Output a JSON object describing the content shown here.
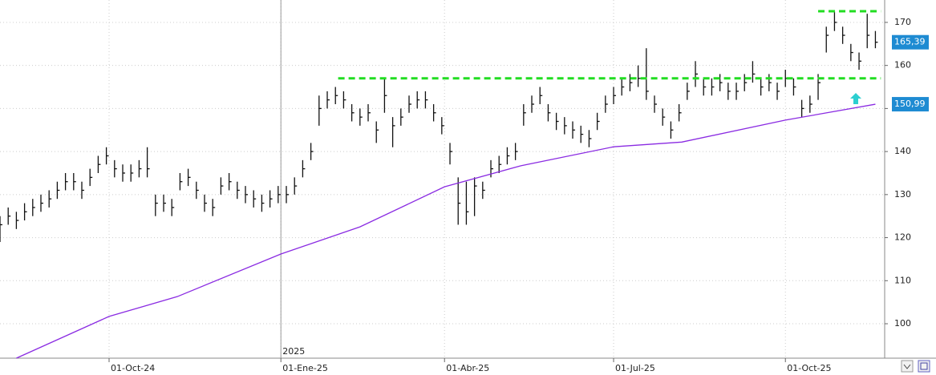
{
  "chart_data": {
    "type": "ohlc",
    "xlim": [
      0,
      324.4
    ],
    "ylim": [
      92,
      175.2
    ],
    "yticks": [
      100,
      110,
      120,
      130,
      140,
      150,
      160,
      170
    ],
    "xticks": [
      {
        "value": 40,
        "label": "01-Oct-24"
      },
      {
        "value": 103,
        "label": "01-Ene-25"
      },
      {
        "value": 163,
        "label": "01-Abr-25"
      },
      {
        "value": 225,
        "label": "01-Jul-25"
      },
      {
        "value": 288,
        "label": "01-Oct-25"
      }
    ],
    "year_marker": {
      "value": 103,
      "label": "2025"
    },
    "grid": true,
    "x": [
      0,
      3,
      6,
      9,
      12,
      15,
      18,
      21,
      24,
      27,
      30,
      33,
      36,
      39,
      42,
      45,
      48,
      51,
      54,
      57,
      60,
      63,
      66,
      69,
      72,
      75,
      78,
      81,
      84,
      87,
      90,
      93,
      96,
      99,
      102,
      105,
      108,
      111,
      114,
      117,
      120,
      123,
      126,
      129,
      132,
      135,
      138,
      141,
      144,
      147,
      150,
      153,
      156,
      159,
      162,
      165,
      168,
      171,
      174,
      177,
      180,
      183,
      186,
      189,
      192,
      195,
      198,
      201,
      204,
      207,
      210,
      213,
      216,
      219,
      222,
      225,
      228,
      231,
      234,
      237,
      240,
      243,
      246,
      249,
      252,
      255,
      258,
      261,
      264,
      267,
      270,
      273,
      276,
      279,
      282,
      285,
      288,
      291,
      294,
      297,
      300,
      303,
      306,
      309,
      312,
      315,
      318,
      321
    ],
    "color": "#111111",
    "high": [
      125,
      127,
      126,
      128,
      129,
      130,
      131,
      133,
      135,
      135,
      133,
      136,
      139,
      141,
      138,
      137,
      137,
      138,
      141,
      130,
      130,
      129,
      135,
      136,
      133,
      130,
      129,
      134,
      135,
      133,
      132,
      131,
      130,
      131,
      132,
      132,
      134,
      138,
      142,
      153,
      154,
      155,
      154,
      151,
      150,
      151,
      147,
      157,
      148,
      150,
      153,
      154,
      154,
      151,
      148,
      142,
      134,
      133,
      134,
      133,
      138,
      139,
      141,
      142,
      151,
      153,
      155,
      151,
      149,
      148,
      147,
      146,
      145,
      149,
      153,
      155,
      157,
      158,
      160,
      164,
      153,
      150,
      147,
      151,
      156,
      161,
      157,
      157,
      158,
      156,
      156,
      158,
      161,
      157,
      158,
      156,
      159,
      157,
      152,
      153,
      158,
      169,
      172.5,
      169,
      165,
      163,
      172,
      168
    ],
    "low": [
      119,
      123,
      122,
      124,
      125,
      126,
      127,
      129,
      131,
      131,
      129,
      132,
      135,
      137,
      134,
      133,
      133,
      134,
      134,
      125,
      126,
      125,
      131,
      132,
      129,
      126,
      125,
      130,
      131,
      129,
      128,
      127,
      126,
      127,
      128,
      128,
      130,
      134,
      138,
      146,
      150,
      151,
      150,
      147,
      146,
      147,
      142,
      149,
      141,
      146,
      149,
      150,
      150,
      147,
      144,
      137,
      123,
      123,
      125,
      129,
      134,
      135,
      137,
      138,
      146,
      149,
      151,
      147,
      145,
      144,
      143,
      142,
      141,
      145,
      149,
      151,
      153,
      154,
      155,
      152,
      149,
      146,
      143,
      147,
      152,
      155,
      153,
      153,
      154,
      152,
      152,
      154,
      156,
      153,
      154,
      152,
      155,
      153,
      148,
      149,
      152,
      163,
      168,
      165,
      161,
      159,
      164,
      164
    ],
    "close": [
      123,
      125,
      124,
      126,
      127,
      128,
      129,
      131,
      133,
      133,
      131,
      134,
      137,
      139,
      136,
      135,
      135,
      136,
      136,
      128,
      128,
      127,
      133,
      134,
      131,
      128,
      127,
      132,
      133,
      131,
      130,
      129,
      128,
      129,
      130,
      130,
      132,
      136,
      140,
      150,
      152,
      153,
      152,
      149,
      148,
      149,
      145,
      153,
      146,
      148,
      151,
      152,
      152,
      149,
      146,
      140,
      128,
      126,
      132,
      131,
      136,
      137,
      139,
      140,
      149,
      151,
      153,
      149,
      147,
      146,
      145,
      144,
      143,
      147,
      151,
      153,
      155,
      156,
      157,
      154,
      151,
      148,
      145,
      149,
      154,
      158,
      155,
      155,
      156,
      154,
      154,
      156,
      158,
      155,
      156,
      154,
      157,
      155,
      150,
      151,
      156,
      167,
      170,
      167,
      163,
      161,
      167,
      165.39
    ],
    "ma": {
      "color": "#8a2be2",
      "x": [
        6,
        40,
        65,
        103,
        132,
        163,
        191,
        225,
        250,
        288,
        321
      ],
      "values": [
        92,
        101.7,
        106.3,
        116.2,
        122.5,
        131.8,
        136.7,
        141.1,
        142.2,
        147.3,
        150.99
      ]
    },
    "levels": [
      {
        "value": 157,
        "from": 124,
        "to": 323,
        "color": "#22dd22"
      },
      {
        "value": 172.6,
        "from": 300,
        "to": 323,
        "color": "#22dd22"
      }
    ],
    "last_labels": [
      {
        "value": 165.39,
        "label": "165,39"
      },
      {
        "value": 150.99,
        "label": "150,99"
      }
    ]
  }
}
